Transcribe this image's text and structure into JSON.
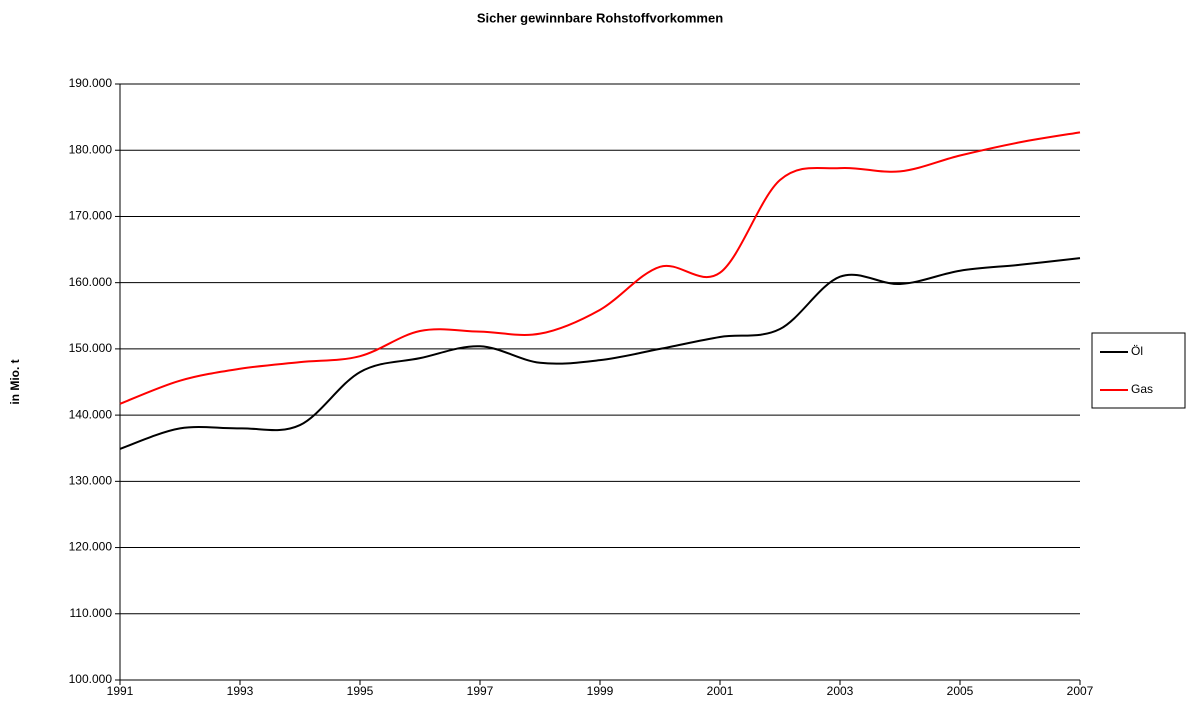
{
  "chart_data": {
    "type": "line",
    "title": "Sicher gewinnbare Rohstoffvorkommen",
    "y_label": "in Mio. t",
    "x": [
      1991,
      1992,
      1993,
      1994,
      1995,
      1996,
      1997,
      1998,
      1999,
      2000,
      2001,
      2002,
      2003,
      2004,
      2005,
      2006,
      2007
    ],
    "series": [
      {
        "name": "Öl",
        "color": "#000000",
        "values": [
          134900,
          138000,
          138000,
          138500,
          146500,
          148600,
          150400,
          147900,
          148300,
          150000,
          151800,
          153000,
          160900,
          159800,
          161800,
          162700,
          163700
        ]
      },
      {
        "name": "Gas",
        "color": "#ff0000",
        "values": [
          141700,
          145200,
          147000,
          148000,
          148900,
          152700,
          152600,
          152300,
          155900,
          162400,
          161500,
          175500,
          177300,
          176800,
          179200,
          181200,
          182700
        ]
      }
    ],
    "xlim": [
      1991,
      2007
    ],
    "xticks": [
      1991,
      1993,
      1995,
      1997,
      1999,
      2001,
      2003,
      2005,
      2007
    ],
    "ylim": [
      100000,
      190000
    ],
    "yticks": [
      {
        "value": 100000,
        "label": "100.000"
      },
      {
        "value": 110000,
        "label": "110.000"
      },
      {
        "value": 120000,
        "label": "120.000"
      },
      {
        "value": 130000,
        "label": "130.000"
      },
      {
        "value": 140000,
        "label": "140.000"
      },
      {
        "value": 150000,
        "label": "150.000"
      },
      {
        "value": 160000,
        "label": "160.000"
      },
      {
        "value": 170000,
        "label": "170.000"
      },
      {
        "value": 180000,
        "label": "180.000"
      },
      {
        "value": 190000,
        "label": "190.000"
      }
    ],
    "grid": true,
    "legend": "right"
  }
}
